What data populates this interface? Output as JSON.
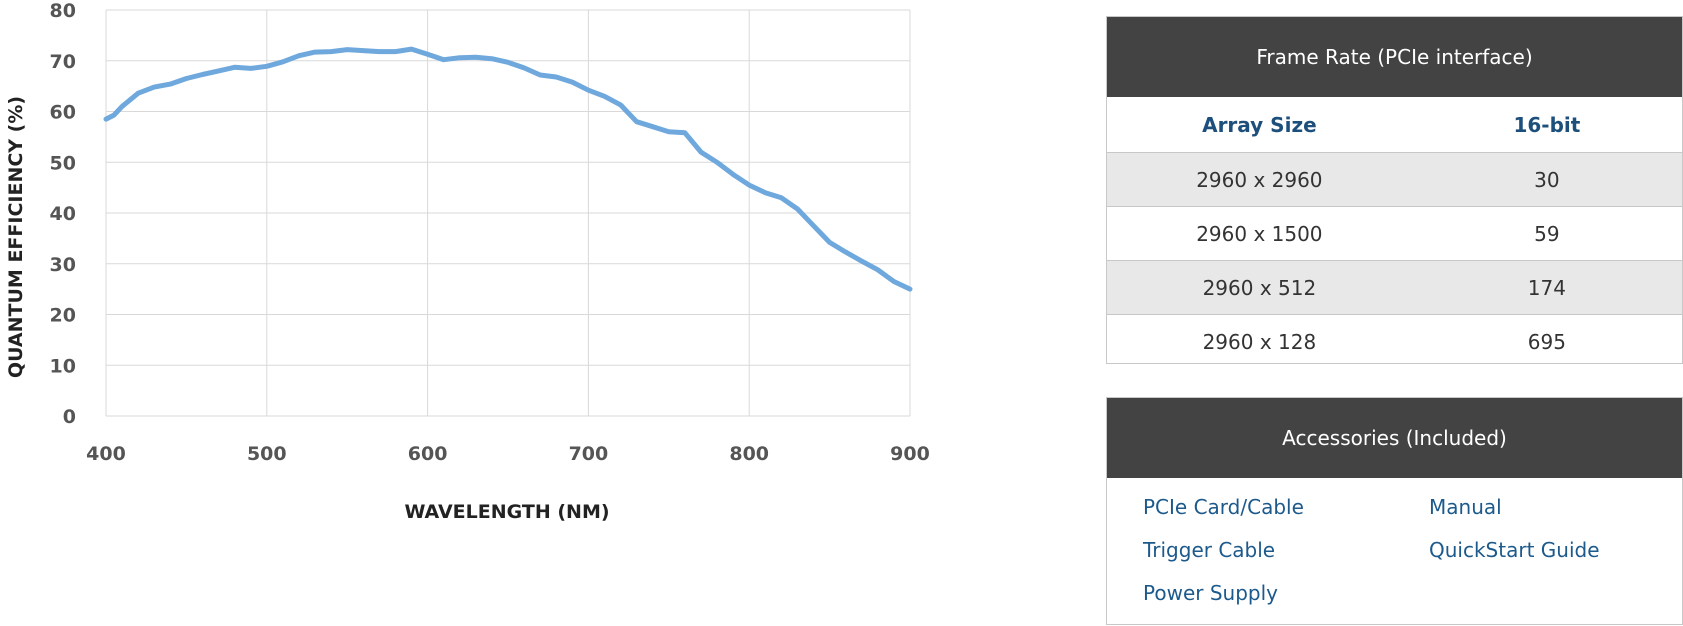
{
  "chart_data": {
    "type": "line",
    "xlabel": "WAVELENGTH (NM)",
    "ylabel": "QUANTUM EFFICIENCY (%)",
    "xlim": [
      400,
      900
    ],
    "ylim": [
      0,
      80
    ],
    "x_ticks": [
      400,
      500,
      600,
      700,
      800,
      900
    ],
    "y_ticks": [
      0,
      10,
      20,
      30,
      40,
      50,
      60,
      70,
      80
    ],
    "grid": true,
    "color": "#6fa8dc",
    "series": [
      {
        "x": [
          400,
          405,
          410,
          420,
          430,
          440,
          450,
          460,
          470,
          480,
          490,
          500,
          510,
          520,
          530,
          540,
          550,
          560,
          570,
          580,
          590,
          600,
          610,
          620,
          630,
          640,
          650,
          660,
          670,
          680,
          690,
          700,
          710,
          720,
          730,
          740,
          750,
          760,
          770,
          780,
          790,
          800,
          810,
          820,
          830,
          840,
          850,
          860,
          870,
          880,
          890,
          900
        ],
        "y": [
          58.5,
          59.3,
          61,
          63.6,
          64.8,
          65.4,
          66.5,
          67.3,
          68,
          68.7,
          68.5,
          68.9,
          69.8,
          71,
          71.7,
          71.8,
          72.2,
          72,
          71.8,
          71.8,
          72.3,
          71.3,
          70.2,
          70.6,
          70.7,
          70.4,
          69.7,
          68.6,
          67.2,
          66.8,
          65.8,
          64.2,
          63,
          61.3,
          58,
          57,
          56,
          55.8,
          52,
          50,
          47.6,
          45.5,
          44,
          43,
          40.8,
          37.5,
          34.2,
          32.3,
          30.5,
          28.8,
          26.5,
          25
        ]
      }
    ]
  },
  "frame_rate": {
    "title": "Frame Rate (PCIe interface)",
    "headers": [
      "Array Size",
      "16-bit"
    ],
    "rows": [
      [
        "2960 x 2960",
        "30"
      ],
      [
        "2960 x 1500",
        "59"
      ],
      [
        "2960 x 512",
        "174"
      ],
      [
        "2960 x 128",
        "695"
      ]
    ]
  },
  "accessories": {
    "title": "Accessories (Included)",
    "items": [
      "PCIe Card/Cable",
      "Manual",
      "Trigger Cable",
      "QuickStart Guide",
      "Power Supply"
    ]
  }
}
